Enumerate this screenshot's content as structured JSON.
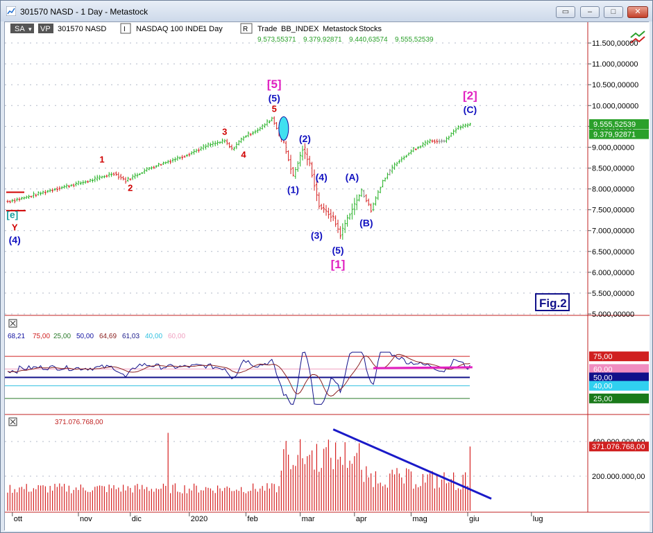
{
  "window": {
    "title": "301570 NASD - 1 Day - Metastock"
  },
  "toolbar": {
    "sa_label": "SA",
    "vp_label": "VP",
    "security": "301570 NASD",
    "i_label": "I",
    "indicator_name": "NASDAQ 100 INDE",
    "period": "1 Day",
    "r_label": "R",
    "trade_label": "Trade",
    "bb_label": "BB_INDEX",
    "source_label": "Metastock",
    "stocks_label": "Stocks",
    "ohlc": [
      "9.573,55371",
      "9.379,92871",
      "9.440,63574",
      "9.555,52539"
    ]
  },
  "fig_label": "Fig.2",
  "colors": {
    "up_bar": "#22b022",
    "down_bar": "#d62020",
    "neutral_bar": "#7f7f7f",
    "wave_blue": "#1010c0",
    "wave_red": "#d00000",
    "wave_magenta": "#e020c0",
    "volume": "#d62020",
    "trendline": "#1a1ac8"
  },
  "osc_legend": [
    "68,21",
    "75,00",
    "25,00",
    "50,00",
    "64,69",
    "61,03",
    "40,00",
    "60,00"
  ],
  "vol_legend": "371.076.768,00",
  "chart_data": [
    {
      "type": "bar",
      "title": "",
      "x_ticks": [
        "ott",
        "nov",
        "dic",
        "2020",
        "feb",
        "mar",
        "apr",
        "mag",
        "giu",
        "lug"
      ],
      "y_ticks": [
        "5.000,00000",
        "5.500,00000",
        "6.000,00000",
        "6.500,00000",
        "7.000,00000",
        "7.500,00000",
        "8.000,00000",
        "8.500,00000",
        "9.000,00000",
        "9.500,00000",
        "10.000,00000",
        "10.500,00000",
        "11.000,00000",
        "11.500,00000"
      ],
      "ylim": [
        5000,
        11900
      ],
      "last_labels": [
        "9.555,52539",
        "9.379,92871"
      ],
      "anchors": [
        {
          "x": 0,
          "y": 7700
        },
        {
          "x": 8,
          "y": 7800
        },
        {
          "x": 20,
          "y": 8000
        },
        {
          "x": 35,
          "y": 8200
        },
        {
          "x": 45,
          "y": 8380
        },
        {
          "x": 50,
          "y": 8200
        },
        {
          "x": 60,
          "y": 8500
        },
        {
          "x": 75,
          "y": 8800
        },
        {
          "x": 85,
          "y": 9050
        },
        {
          "x": 92,
          "y": 9150
        },
        {
          "x": 95,
          "y": 8950
        },
        {
          "x": 100,
          "y": 9250
        },
        {
          "x": 107,
          "y": 9450
        },
        {
          "x": 112,
          "y": 9700
        },
        {
          "x": 117,
          "y": 9100
        },
        {
          "x": 121,
          "y": 8300
        },
        {
          "x": 125,
          "y": 8950
        },
        {
          "x": 128,
          "y": 8600
        },
        {
          "x": 132,
          "y": 7600
        },
        {
          "x": 138,
          "y": 7300
        },
        {
          "x": 141,
          "y": 6900
        },
        {
          "x": 144,
          "y": 7300
        },
        {
          "x": 150,
          "y": 7950
        },
        {
          "x": 154,
          "y": 7500
        },
        {
          "x": 159,
          "y": 8200
        },
        {
          "x": 165,
          "y": 8650
        },
        {
          "x": 172,
          "y": 8950
        },
        {
          "x": 179,
          "y": 9150
        },
        {
          "x": 185,
          "y": 9150
        },
        {
          "x": 190,
          "y": 9450
        },
        {
          "x": 196,
          "y": 9550
        }
      ],
      "wave_labels": [
        {
          "text": "[e]",
          "color": "#1aa0a0",
          "x": 2,
          "y": 7300
        },
        {
          "text": "Y",
          "color": "#d00000",
          "x": 3,
          "y": 7000
        },
        {
          "text": "(4)",
          "color": "#1010c0",
          "x": 3,
          "y": 6700
        },
        {
          "text": "1",
          "color": "#d00000",
          "x": 40,
          "y": 8630
        },
        {
          "text": "2",
          "color": "#d00000",
          "x": 52,
          "y": 7950
        },
        {
          "text": "3",
          "color": "#d00000",
          "x": 92,
          "y": 9300
        },
        {
          "text": "4",
          "color": "#d00000",
          "x": 100,
          "y": 8750
        },
        {
          "text": "5",
          "color": "#d00000",
          "x": 113,
          "y": 9850
        },
        {
          "text": "(5)",
          "color": "#1010c0",
          "x": 113,
          "y": 10100
        },
        {
          "text": "[5]",
          "color": "#e020c0",
          "x": 113,
          "y": 10420
        },
        {
          "text": "(2)",
          "color": "#1010c0",
          "x": 126,
          "y": 9120
        },
        {
          "text": "(1)",
          "color": "#1010c0",
          "x": 121,
          "y": 7900
        },
        {
          "text": "(4)",
          "color": "#1010c0",
          "x": 133,
          "y": 8200
        },
        {
          "text": "(3)",
          "color": "#1010c0",
          "x": 131,
          "y": 6800
        },
        {
          "text": "(5)",
          "color": "#1010c0",
          "x": 140,
          "y": 6450
        },
        {
          "text": "[1]",
          "color": "#e020c0",
          "x": 140,
          "y": 6100
        },
        {
          "text": "(A)",
          "color": "#1010c0",
          "x": 146,
          "y": 8200
        },
        {
          "text": "(B)",
          "color": "#1010c0",
          "x": 152,
          "y": 7100
        },
        {
          "text": "(C)",
          "color": "#1010c0",
          "x": 196,
          "y": 9820
        },
        {
          "text": "[2]",
          "color": "#e020c0",
          "x": 196,
          "y": 10150
        }
      ]
    },
    {
      "type": "line",
      "title": "",
      "ylim": [
        15,
        85
      ],
      "levels": [
        75,
        60,
        50,
        40,
        25
      ],
      "level_labels": [
        "75,00",
        "60,00",
        "50,00",
        "40,00",
        "25,00"
      ]
    },
    {
      "type": "bar",
      "title": "",
      "y_ticks": [
        "200.000.000,00",
        "400.000.000,00"
      ],
      "ylim": [
        0,
        520000000
      ],
      "last_label": "371.076.768,00",
      "trend_start": {
        "x": 138,
        "value": 470000000
      },
      "trend_end": {
        "x": 205,
        "value": 70000000
      }
    }
  ]
}
